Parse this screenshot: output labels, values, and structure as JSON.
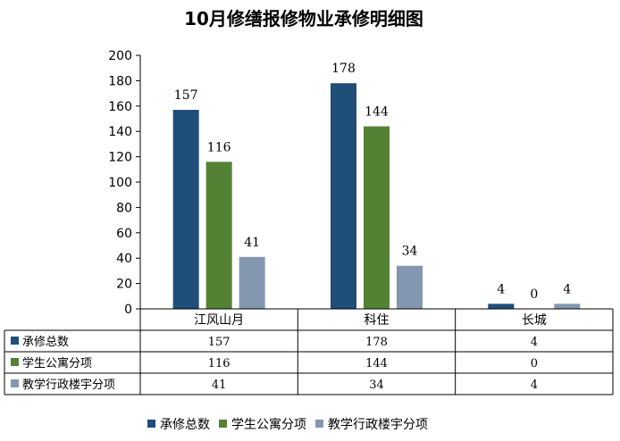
{
  "chart_data": {
    "type": "bar",
    "title": "10月修缮报修物业承修明细图",
    "categories": [
      "江风山月",
      "科住",
      "长城"
    ],
    "series": [
      {
        "name": "承修总数",
        "values": [
          157,
          178,
          4
        ],
        "color": "#1F4E79"
      },
      {
        "name": "学生公寓分项",
        "values": [
          116,
          144,
          0
        ],
        "color": "#548235"
      },
      {
        "name": "教学行政楼宇分项",
        "values": [
          41,
          34,
          4
        ],
        "color": "#8497B0"
      }
    ],
    "ylim": [
      0,
      200
    ],
    "yticks": [
      0,
      20,
      40,
      60,
      80,
      100,
      120,
      140,
      160,
      180,
      200
    ],
    "grid": false,
    "data_table": true,
    "legend_position": "bottom"
  }
}
